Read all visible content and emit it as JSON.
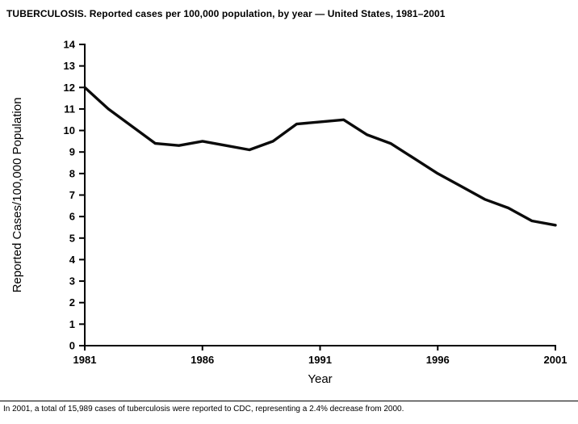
{
  "chart_data": {
    "type": "line",
    "title": "TUBERCULOSIS. Reported cases per 100,000 population, by year — United States, 1981–2001",
    "xlabel": "Year",
    "ylabel": "Reported Cases/100,000 Population",
    "x": [
      1981,
      1982,
      1983,
      1984,
      1985,
      1986,
      1987,
      1988,
      1989,
      1990,
      1991,
      1992,
      1993,
      1994,
      1995,
      1996,
      1997,
      1998,
      1999,
      2000,
      2001
    ],
    "values": [
      12.0,
      11.0,
      10.2,
      9.4,
      9.3,
      9.5,
      9.3,
      9.1,
      9.5,
      10.3,
      10.4,
      10.5,
      9.8,
      9.4,
      8.7,
      8.0,
      7.4,
      6.8,
      6.4,
      5.8,
      5.6
    ],
    "xlim": [
      1981,
      2001
    ],
    "ylim": [
      0,
      14
    ],
    "y_tick_step": 1,
    "x_tick_labels": [
      1981,
      1986,
      1991,
      1996,
      2001
    ],
    "line_color": "#0b0b0b",
    "axis_color": "#000000",
    "grid": false,
    "legend": "none"
  },
  "footnote": "In 2001, a total of 15,989 cases of tuberculosis were reported to CDC, representing a 2.4% decrease from 2000."
}
